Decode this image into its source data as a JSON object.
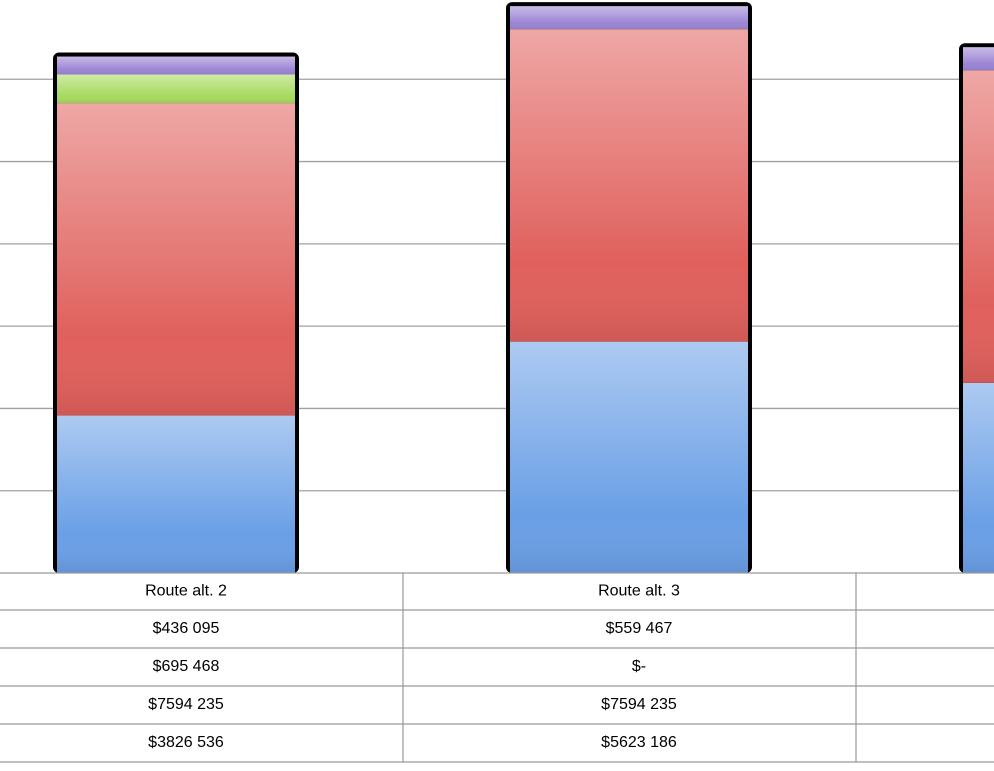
{
  "chart_data": {
    "type": "bar",
    "stacked": true,
    "categories": [
      "Route alt. 2",
      "Route alt. 3",
      null
    ],
    "series": [
      {
        "color": "#9b84d4",
        "values": [
          436095,
          559467,
          560000
        ],
        "value_labels": [
          "$436 095",
          "$559 467",
          null
        ]
      },
      {
        "color": "#a6da5e",
        "values": [
          695468,
          0,
          0
        ],
        "value_labels": [
          "$695 468",
          "$-",
          null
        ]
      },
      {
        "color": "#e0605c",
        "values": [
          7594235,
          7594235,
          7600000
        ],
        "value_labels": [
          "$7594 235",
          "$7594 235",
          null
        ]
      },
      {
        "color": "#6a9fe6",
        "values": [
          3826536,
          5623186,
          4620000
        ],
        "value_labels": [
          "$3826 536",
          "$5623 186",
          null
        ]
      }
    ],
    "ylim": [
      0,
      14000000
    ],
    "yticks": [
      2000000,
      4000000,
      6000000,
      8000000,
      10000000,
      12000000
    ],
    "grid": true
  }
}
